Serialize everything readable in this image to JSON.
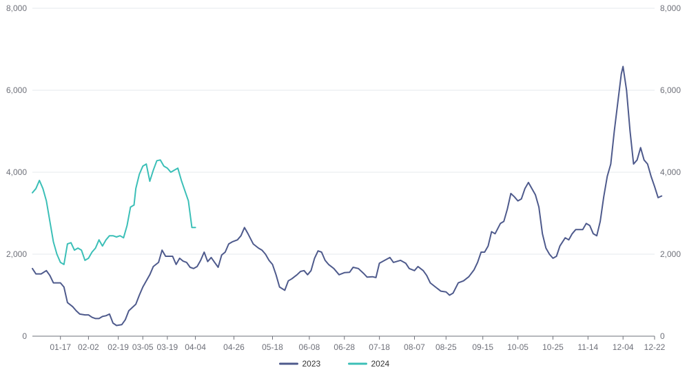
{
  "chart_data": {
    "type": "line",
    "title": "",
    "xlabel": "",
    "ylabel": "",
    "ylim": [
      0,
      8000
    ],
    "y_ticks": [
      "0",
      "2,000",
      "4,000",
      "6,000",
      "8,000"
    ],
    "y_tick_values": [
      0,
      2000,
      4000,
      6000,
      8000
    ],
    "dual_y_axis": true,
    "x_categories": [
      "01-17",
      "02-02",
      "02-19",
      "03-05",
      "03-19",
      "04-04",
      "04-26",
      "05-18",
      "06-08",
      "06-28",
      "07-18",
      "08-07",
      "08-25",
      "09-15",
      "10-05",
      "10-25",
      "11-14",
      "12-04",
      "12-22"
    ],
    "x_range": [
      "01-01",
      "12-22"
    ],
    "grid": true,
    "legend_position": "bottom",
    "series": [
      {
        "name": "2023",
        "color": "#4e5a8c",
        "points": [
          [
            "01-01",
            1650
          ],
          [
            "01-03",
            1520
          ],
          [
            "01-06",
            1520
          ],
          [
            "01-09",
            1600
          ],
          [
            "01-11",
            1480
          ],
          [
            "01-13",
            1300
          ],
          [
            "01-17",
            1300
          ],
          [
            "01-19",
            1200
          ],
          [
            "01-21",
            820
          ],
          [
            "01-24",
            720
          ],
          [
            "01-26",
            620
          ],
          [
            "01-28",
            540
          ],
          [
            "01-31",
            520
          ],
          [
            "02-02",
            520
          ],
          [
            "02-04",
            460
          ],
          [
            "02-06",
            430
          ],
          [
            "02-08",
            430
          ],
          [
            "02-10",
            480
          ],
          [
            "02-12",
            500
          ],
          [
            "02-14",
            540
          ],
          [
            "02-16",
            320
          ],
          [
            "02-18",
            260
          ],
          [
            "02-21",
            280
          ],
          [
            "02-23",
            400
          ],
          [
            "02-25",
            620
          ],
          [
            "02-27",
            700
          ],
          [
            "03-01",
            780
          ],
          [
            "03-03",
            1000
          ],
          [
            "03-05",
            1200
          ],
          [
            "03-07",
            1350
          ],
          [
            "03-09",
            1500
          ],
          [
            "03-11",
            1700
          ],
          [
            "03-14",
            1800
          ],
          [
            "03-16",
            2100
          ],
          [
            "03-18",
            1950
          ],
          [
            "03-20",
            1950
          ],
          [
            "03-22",
            1950
          ],
          [
            "03-24",
            1750
          ],
          [
            "03-26",
            1900
          ],
          [
            "03-28",
            1830
          ],
          [
            "03-30",
            1800
          ],
          [
            "04-01",
            1680
          ],
          [
            "04-03",
            1650
          ],
          [
            "04-05",
            1700
          ],
          [
            "04-07",
            1850
          ],
          [
            "04-09",
            2050
          ],
          [
            "04-11",
            1820
          ],
          [
            "04-13",
            1920
          ],
          [
            "04-15",
            1800
          ],
          [
            "04-17",
            1680
          ],
          [
            "04-19",
            1980
          ],
          [
            "04-21",
            2050
          ],
          [
            "04-23",
            2250
          ],
          [
            "04-25",
            2300
          ],
          [
            "04-28",
            2350
          ],
          [
            "04-30",
            2450
          ],
          [
            "05-02",
            2650
          ],
          [
            "05-04",
            2500
          ],
          [
            "05-07",
            2250
          ],
          [
            "05-10",
            2150
          ],
          [
            "05-12",
            2100
          ],
          [
            "05-14",
            2000
          ],
          [
            "05-16",
            1850
          ],
          [
            "05-18",
            1750
          ],
          [
            "05-20",
            1500
          ],
          [
            "05-22",
            1200
          ],
          [
            "05-25",
            1120
          ],
          [
            "05-27",
            1350
          ],
          [
            "05-29",
            1400
          ],
          [
            "06-01",
            1500
          ],
          [
            "06-03",
            1580
          ],
          [
            "06-05",
            1600
          ],
          [
            "06-07",
            1500
          ],
          [
            "06-09",
            1600
          ],
          [
            "06-11",
            1900
          ],
          [
            "06-13",
            2080
          ],
          [
            "06-15",
            2050
          ],
          [
            "06-17",
            1850
          ],
          [
            "06-19",
            1750
          ],
          [
            "06-22",
            1650
          ],
          [
            "06-25",
            1500
          ],
          [
            "06-28",
            1550
          ],
          [
            "07-01",
            1560
          ],
          [
            "07-03",
            1680
          ],
          [
            "07-06",
            1650
          ],
          [
            "07-09",
            1530
          ],
          [
            "07-11",
            1440
          ],
          [
            "07-14",
            1450
          ],
          [
            "07-16",
            1430
          ],
          [
            "07-18",
            1780
          ],
          [
            "07-21",
            1850
          ],
          [
            "07-24",
            1920
          ],
          [
            "07-26",
            1800
          ],
          [
            "07-30",
            1850
          ],
          [
            "08-02",
            1780
          ],
          [
            "08-04",
            1650
          ],
          [
            "08-07",
            1600
          ],
          [
            "08-09",
            1700
          ],
          [
            "08-12",
            1600
          ],
          [
            "08-14",
            1480
          ],
          [
            "08-16",
            1300
          ],
          [
            "08-19",
            1200
          ],
          [
            "08-22",
            1100
          ],
          [
            "08-25",
            1080
          ],
          [
            "08-27",
            1000
          ],
          [
            "08-29",
            1050
          ],
          [
            "09-01",
            1300
          ],
          [
            "09-04",
            1350
          ],
          [
            "09-07",
            1450
          ],
          [
            "09-10",
            1620
          ],
          [
            "09-12",
            1800
          ],
          [
            "09-14",
            2050
          ],
          [
            "09-16",
            2050
          ],
          [
            "09-18",
            2200
          ],
          [
            "09-20",
            2550
          ],
          [
            "09-22",
            2500
          ],
          [
            "09-25",
            2750
          ],
          [
            "09-27",
            2800
          ],
          [
            "09-29",
            3100
          ],
          [
            "10-01",
            3480
          ],
          [
            "10-03",
            3400
          ],
          [
            "10-05",
            3300
          ],
          [
            "10-07",
            3350
          ],
          [
            "10-09",
            3600
          ],
          [
            "10-11",
            3750
          ],
          [
            "10-13",
            3600
          ],
          [
            "10-15",
            3450
          ],
          [
            "10-17",
            3150
          ],
          [
            "10-19",
            2500
          ],
          [
            "10-21",
            2150
          ],
          [
            "10-23",
            2000
          ],
          [
            "10-25",
            1900
          ],
          [
            "10-27",
            1950
          ],
          [
            "10-29",
            2200
          ],
          [
            "11-01",
            2400
          ],
          [
            "11-03",
            2350
          ],
          [
            "11-05",
            2500
          ],
          [
            "11-07",
            2600
          ],
          [
            "11-09",
            2600
          ],
          [
            "11-11",
            2600
          ],
          [
            "11-13",
            2750
          ],
          [
            "11-15",
            2700
          ],
          [
            "11-17",
            2500
          ],
          [
            "11-19",
            2450
          ],
          [
            "11-21",
            2800
          ],
          [
            "11-23",
            3400
          ],
          [
            "11-25",
            3900
          ],
          [
            "11-27",
            4200
          ],
          [
            "11-29",
            5000
          ],
          [
            "12-01",
            5700
          ],
          [
            "12-03",
            6400
          ],
          [
            "12-04",
            6580
          ],
          [
            "12-06",
            6000
          ],
          [
            "12-08",
            5000
          ],
          [
            "12-10",
            4200
          ],
          [
            "12-12",
            4300
          ],
          [
            "12-14",
            4600
          ],
          [
            "12-16",
            4300
          ],
          [
            "12-18",
            4200
          ],
          [
            "12-20",
            3900
          ],
          [
            "12-22",
            3650
          ],
          [
            "12-24",
            3380
          ],
          [
            "12-26",
            3420
          ]
        ]
      },
      {
        "name": "2024",
        "color": "#3bbfb7",
        "points": [
          [
            "01-01",
            3500
          ],
          [
            "01-03",
            3600
          ],
          [
            "01-05",
            3800
          ],
          [
            "01-07",
            3600
          ],
          [
            "01-09",
            3300
          ],
          [
            "01-11",
            2800
          ],
          [
            "01-13",
            2300
          ],
          [
            "01-15",
            2000
          ],
          [
            "01-17",
            1800
          ],
          [
            "01-19",
            1750
          ],
          [
            "01-21",
            2250
          ],
          [
            "01-23",
            2280
          ],
          [
            "01-25",
            2100
          ],
          [
            "01-27",
            2150
          ],
          [
            "01-29",
            2100
          ],
          [
            "01-31",
            1850
          ],
          [
            "02-02",
            1900
          ],
          [
            "02-04",
            2050
          ],
          [
            "02-06",
            2150
          ],
          [
            "02-08",
            2350
          ],
          [
            "02-10",
            2200
          ],
          [
            "02-12",
            2350
          ],
          [
            "02-14",
            2450
          ],
          [
            "02-16",
            2450
          ],
          [
            "02-18",
            2420
          ],
          [
            "02-20",
            2450
          ],
          [
            "02-22",
            2400
          ],
          [
            "02-24",
            2700
          ],
          [
            "02-26",
            3150
          ],
          [
            "02-28",
            3200
          ],
          [
            "03-01",
            3600
          ],
          [
            "03-03",
            3950
          ],
          [
            "03-05",
            4150
          ],
          [
            "03-07",
            4200
          ],
          [
            "03-09",
            3780
          ],
          [
            "03-11",
            4050
          ],
          [
            "03-13",
            4280
          ],
          [
            "03-15",
            4300
          ],
          [
            "03-17",
            4150
          ],
          [
            "03-19",
            4100
          ],
          [
            "03-21",
            4000
          ],
          [
            "03-23",
            4050
          ],
          [
            "03-25",
            4100
          ],
          [
            "03-27",
            3800
          ],
          [
            "03-29",
            3550
          ],
          [
            "03-31",
            3300
          ],
          [
            "04-02",
            2650
          ],
          [
            "04-04",
            2650
          ]
        ]
      }
    ]
  }
}
